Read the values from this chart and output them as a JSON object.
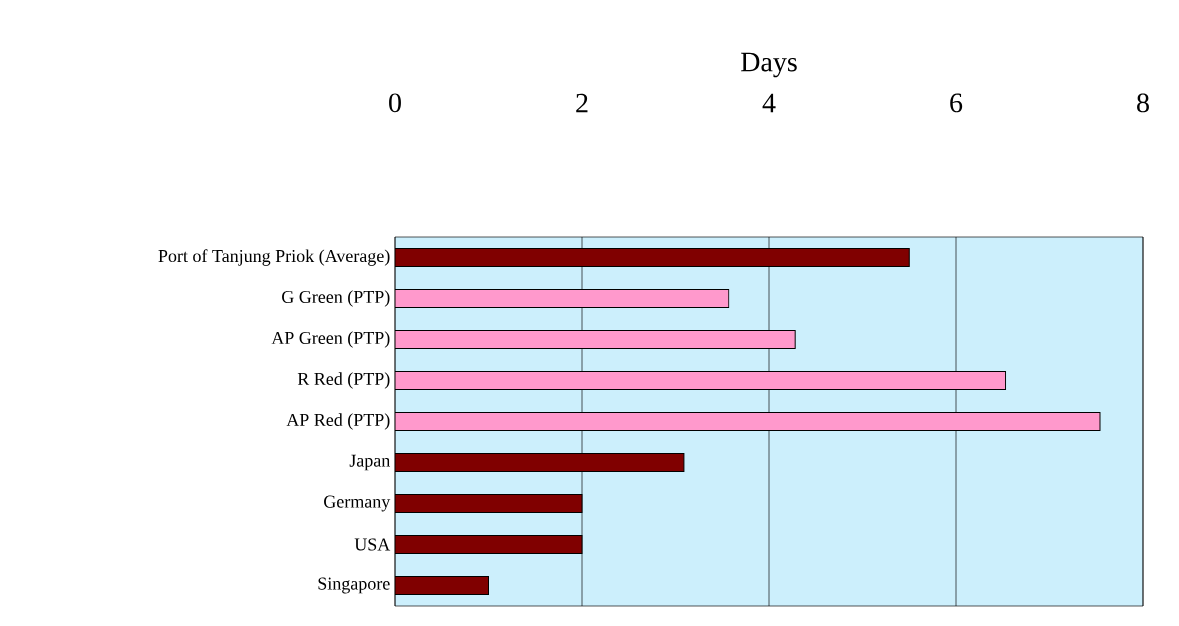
{
  "chart_data": {
    "type": "bar",
    "orientation": "horizontal",
    "xlabel": "Days",
    "categories": [
      "Port of Tanjung Priok (Average)",
      "G Green (PTP)",
      "AP Green (PTP)",
      "R Red (PTP)",
      "AP Red (PTP)",
      "Japan",
      "Germany",
      "USA",
      "Singapore"
    ],
    "values": [
      5.5,
      3.57,
      4.28,
      6.53,
      7.54,
      3.09,
      2,
      2,
      1
    ],
    "colors": [
      "#800000",
      "#ff99cc",
      "#ff99cc",
      "#ff99cc",
      "#ff99cc",
      "#800000",
      "#800000",
      "#800000",
      "#800000"
    ],
    "xlim": [
      0,
      8
    ],
    "xticks": [
      0,
      2,
      4,
      6,
      8
    ],
    "grid": "x"
  }
}
